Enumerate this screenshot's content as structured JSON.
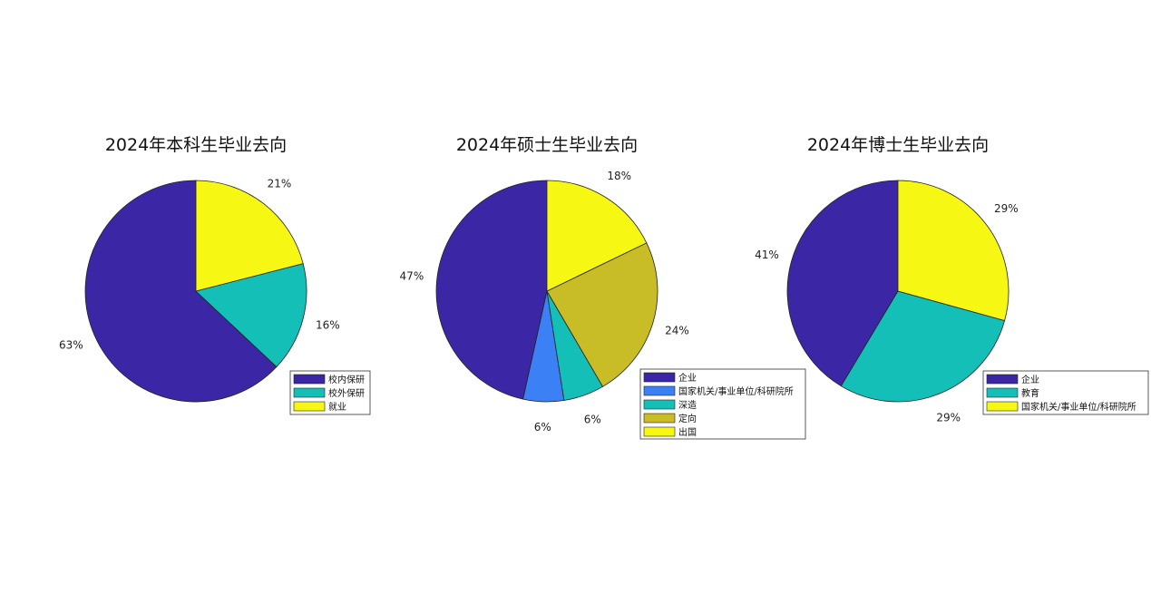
{
  "chart_data": [
    {
      "type": "pie",
      "title": "2024年本科生毕业去向",
      "slices": [
        {
          "label": "校内保研",
          "value": 63,
          "display": "63%",
          "color": "#3b27a6"
        },
        {
          "label": "校外保研",
          "value": 16,
          "display": "16%",
          "color": "#14bfb8"
        },
        {
          "label": "就业",
          "value": 21,
          "display": "21%",
          "color": "#f7f714"
        }
      ],
      "legend": "bottom-right"
    },
    {
      "type": "pie",
      "title": "2024年硕士生毕业去向",
      "slices": [
        {
          "label": "企业",
          "value": 47,
          "display": "47%",
          "color": "#3b27a6"
        },
        {
          "label": "国家机关/事业单位/科研院所",
          "value": 6,
          "display": "6%",
          "color": "#3b80f5"
        },
        {
          "label": "深造",
          "value": 6,
          "display": "6%",
          "color": "#14bfb8"
        },
        {
          "label": "定向",
          "value": 24,
          "display": "24%",
          "color": "#c9bd27"
        },
        {
          "label": "出国",
          "value": 18,
          "display": "18%",
          "color": "#f7f714"
        }
      ],
      "legend": "bottom-right"
    },
    {
      "type": "pie",
      "title": "2024年博士生毕业去向",
      "slices": [
        {
          "label": "企业",
          "value": 41,
          "display": "41%",
          "color": "#3b27a6"
        },
        {
          "label": "教育",
          "value": 29,
          "display": "29%",
          "color": "#14bfb8"
        },
        {
          "label": "国家机关/事业单位/科研院所",
          "value": 29,
          "display": "29%",
          "color": "#f7f714"
        }
      ],
      "legend": "bottom-right"
    }
  ]
}
